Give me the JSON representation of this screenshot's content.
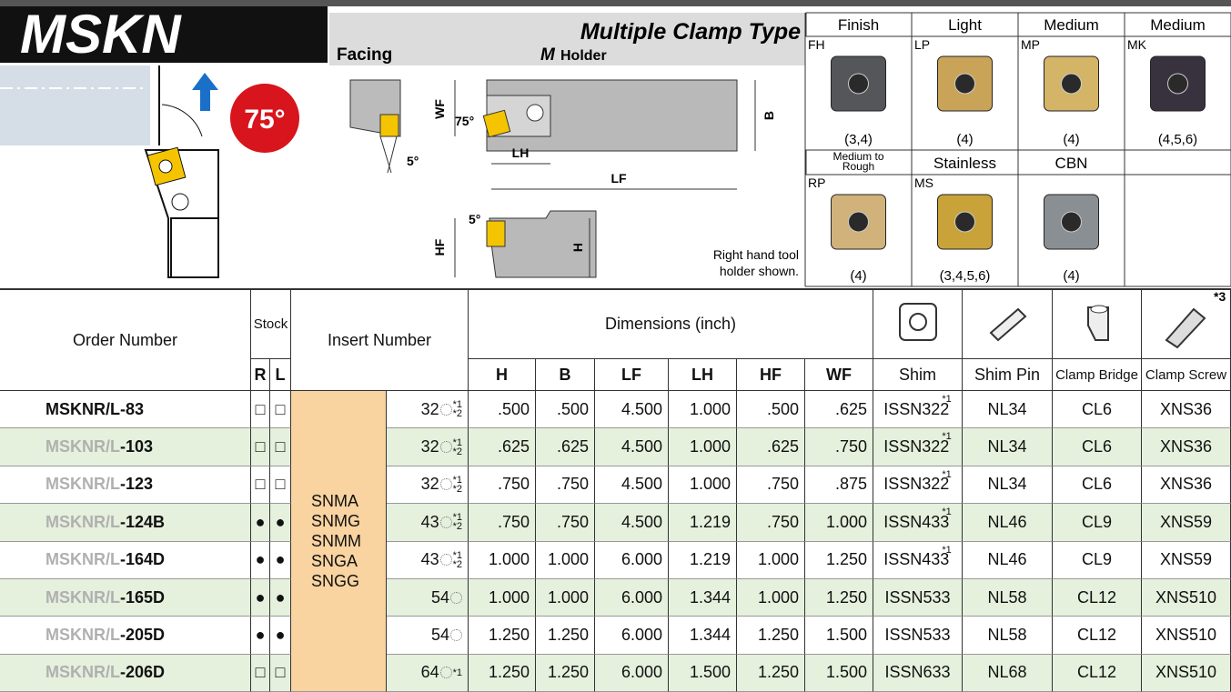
{
  "header": {
    "series": "MSKN",
    "angle": "75°",
    "type": "Multiple Clamp Type",
    "operation": "Facing",
    "holder_mark": "M",
    "holder": "Holder"
  },
  "diagram": {
    "wf": "WF",
    "b": "B",
    "angle": "75°",
    "lh": "LH",
    "lf": "LF",
    "lead": "5°",
    "hf": "HF",
    "h": "H",
    "rake": "5°",
    "note": [
      "Right hand tool",
      "holder shown."
    ]
  },
  "grades": [
    [
      {
        "group": [
          "Finish"
        ],
        "code": "FH",
        "cap": "(3,4)"
      },
      {
        "group": [
          "Light"
        ],
        "code": "LP",
        "cap": "(4)"
      },
      {
        "group": [
          "Medium"
        ],
        "code": "MP",
        "cap": "(4)"
      },
      {
        "group": [
          "Medium"
        ],
        "code": "MK",
        "cap": "(4,5,6)"
      }
    ],
    [
      {
        "group": [
          "Medium to",
          "Rough"
        ],
        "code": "RP",
        "cap": "(4)"
      },
      {
        "group": [
          "Stainless"
        ],
        "code": "MS",
        "cap": "(3,4,5,6)"
      },
      {
        "group": [
          "CBN"
        ],
        "cap": "(4)"
      }
    ]
  ],
  "table": {
    "head": {
      "order": "Order Number",
      "stock": "Stock",
      "r": "R",
      "l": "L",
      "insert": "Insert Number",
      "dims": "Dimensions (inch)",
      "dim_cols": [
        "H",
        "B",
        "LF",
        "LH",
        "HF",
        "WF"
      ],
      "parts": [
        "Shim",
        "Shim Pin",
        "Clamp Bridge",
        "Clamp Screw"
      ],
      "screw_note": "*3"
    },
    "inserts": [
      "SNMA",
      "SNMG",
      "SNMM",
      "SNGA",
      "SNGG"
    ],
    "rows": [
      {
        "prefix": "MSKNR/L",
        "suffix": "-83",
        "r": "□",
        "l": "□",
        "size": "32",
        "notes": [
          "*1",
          "*2"
        ],
        "dims": [
          ".500",
          ".500",
          "4.500",
          "1.000",
          ".500",
          ".625"
        ],
        "shim": "ISSN322",
        "shim_note": "*1",
        "pin": "NL34",
        "bridge": "CL6",
        "screw": "XNS36"
      },
      {
        "prefix": "MSKNR/L",
        "suffix": "-103",
        "r": "□",
        "l": "□",
        "size": "32",
        "notes": [
          "*1",
          "*2"
        ],
        "dims": [
          ".625",
          ".625",
          "4.500",
          "1.000",
          ".625",
          ".750"
        ],
        "shim": "ISSN322",
        "shim_note": "*1",
        "pin": "NL34",
        "bridge": "CL6",
        "screw": "XNS36"
      },
      {
        "prefix": "MSKNR/L",
        "suffix": "-123",
        "r": "□",
        "l": "□",
        "size": "32",
        "notes": [
          "*1",
          "*2"
        ],
        "dims": [
          ".750",
          ".750",
          "4.500",
          "1.000",
          ".750",
          ".875"
        ],
        "shim": "ISSN322",
        "shim_note": "*1",
        "pin": "NL34",
        "bridge": "CL6",
        "screw": "XNS36"
      },
      {
        "prefix": "MSKNR/L",
        "suffix": "-124B",
        "r": "●",
        "l": "●",
        "size": "43",
        "notes": [
          "*1",
          "*2"
        ],
        "dims": [
          ".750",
          ".750",
          "4.500",
          "1.219",
          ".750",
          "1.000"
        ],
        "shim": "ISSN433",
        "shim_note": "*1",
        "pin": "NL46",
        "bridge": "CL9",
        "screw": "XNS59"
      },
      {
        "prefix": "MSKNR/L",
        "suffix": "-164D",
        "r": "●",
        "l": "●",
        "size": "43",
        "notes": [
          "*1",
          "*2"
        ],
        "dims": [
          "1.000",
          "1.000",
          "6.000",
          "1.219",
          "1.000",
          "1.250"
        ],
        "shim": "ISSN433",
        "shim_note": "*1",
        "pin": "NL46",
        "bridge": "CL9",
        "screw": "XNS59"
      },
      {
        "prefix": "MSKNR/L",
        "suffix": "-165D",
        "r": "●",
        "l": "●",
        "size": "54",
        "notes": [],
        "dims": [
          "1.000",
          "1.000",
          "6.000",
          "1.344",
          "1.000",
          "1.250"
        ],
        "shim": "ISSN533",
        "pin": "NL58",
        "bridge": "CL12",
        "screw": "XNS510"
      },
      {
        "prefix": "MSKNR/L",
        "suffix": "-205D",
        "r": "●",
        "l": "●",
        "size": "54",
        "notes": [],
        "dims": [
          "1.250",
          "1.250",
          "6.000",
          "1.344",
          "1.250",
          "1.500"
        ],
        "shim": "ISSN533",
        "pin": "NL58",
        "bridge": "CL12",
        "screw": "XNS510"
      },
      {
        "prefix": "MSKNR/L",
        "suffix": "-206D",
        "r": "□",
        "l": "□",
        "size": "64",
        "notes": [
          "*1"
        ],
        "dims": [
          "1.250",
          "1.250",
          "6.000",
          "1.500",
          "1.250",
          "1.500"
        ],
        "shim": "ISSN633",
        "pin": "NL68",
        "bridge": "CL12",
        "screw": "XNS510"
      }
    ]
  }
}
